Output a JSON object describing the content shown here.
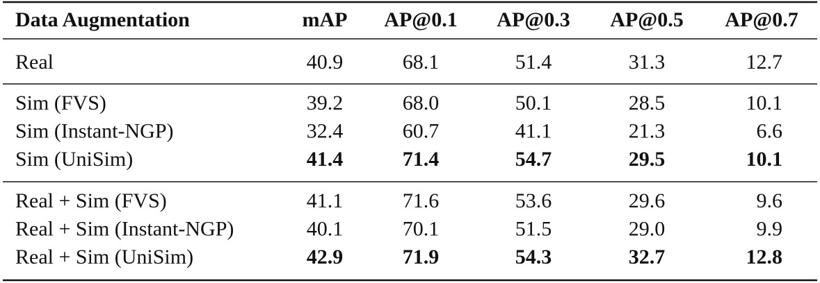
{
  "table": {
    "header": [
      "Data Augmentation",
      "mAP",
      "AP@0.1",
      "AP@0.3",
      "AP@0.5",
      "AP@0.7"
    ],
    "groups": [
      {
        "rows": [
          {
            "cells": [
              "Real",
              "40.9",
              "68.1",
              "51.4",
              "31.3",
              "12.7"
            ],
            "bold": false
          }
        ]
      },
      {
        "rows": [
          {
            "cells": [
              "Sim (FVS)",
              "39.2",
              "68.0",
              "50.1",
              "28.5",
              "10.1"
            ],
            "bold": false
          },
          {
            "cells": [
              "Sim (Instant-NGP)",
              "32.4",
              "60.7",
              "41.1",
              "21.3",
              "6.6"
            ],
            "bold": false
          },
          {
            "cells": [
              "Sim (UniSim)",
              "41.4",
              "71.4",
              "54.7",
              "29.5",
              "10.1"
            ],
            "bold": true
          }
        ]
      },
      {
        "rows": [
          {
            "cells": [
              "Real + Sim (FVS)",
              "41.1",
              "71.6",
              "53.6",
              "29.6",
              "9.6"
            ],
            "bold": false
          },
          {
            "cells": [
              "Real + Sim (Instant-NGP)",
              "40.1",
              "70.1",
              "51.5",
              "29.0",
              "9.9"
            ],
            "bold": false
          },
          {
            "cells": [
              "Real + Sim (UniSim)",
              "42.9",
              "71.9",
              "54.3",
              "32.7",
              "12.8"
            ],
            "bold": true
          }
        ]
      }
    ]
  }
}
